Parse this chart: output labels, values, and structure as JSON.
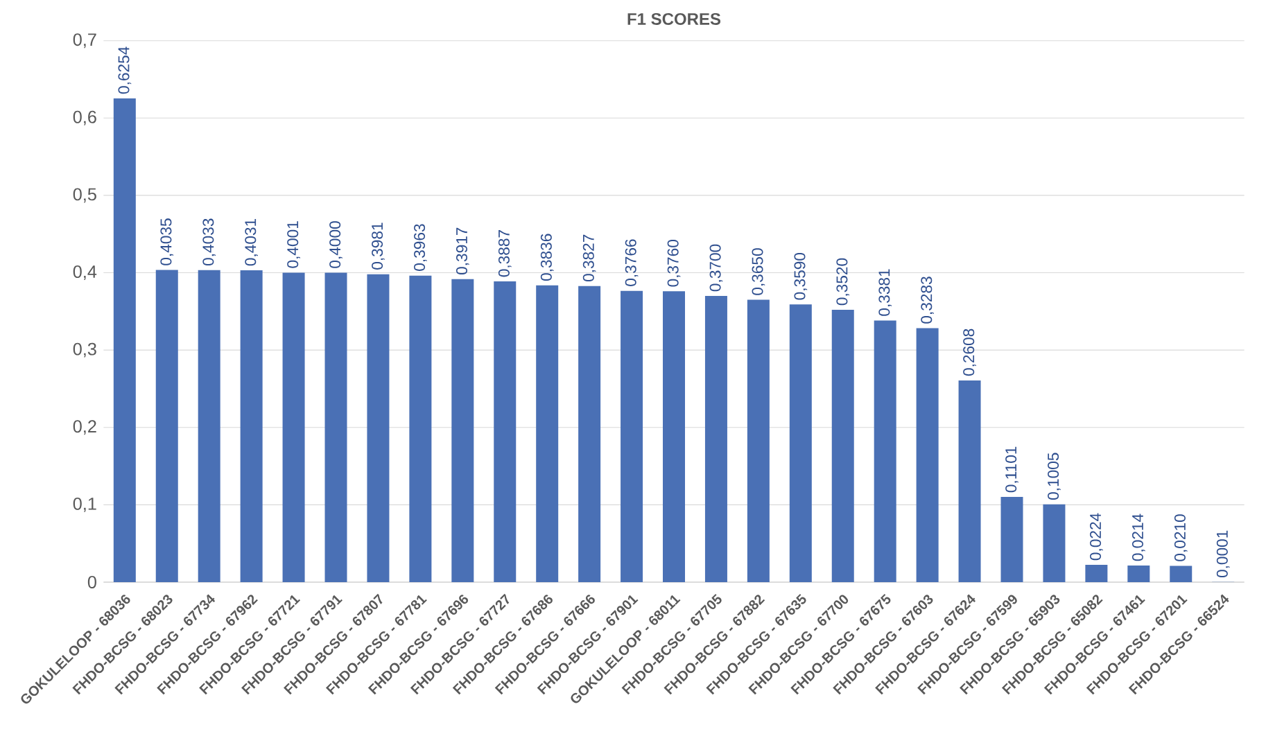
{
  "chart_data": {
    "type": "bar",
    "title": "F1 SCORES",
    "categories": [
      "GOKULELOOP - 68036",
      "FHDO-BCSG - 68023",
      "FHDO-BCSG - 67734",
      "FHDO-BCSG - 67962",
      "FHDO-BCSG - 67721",
      "FHDO-BCSG - 67791",
      "FHDO-BCSG - 67807",
      "FHDO-BCSG - 67781",
      "FHDO-BCSG - 67696",
      "FHDO-BCSG - 67727",
      "FHDO-BCSG - 67686",
      "FHDO-BCSG - 67666",
      "FHDO-BCSG - 67901",
      "GOKULELOOP - 68011",
      "FHDO-BCSG - 67705",
      "FHDO-BCSG - 67882",
      "FHDO-BCSG - 67635",
      "FHDO-BCSG - 67700",
      "FHDO-BCSG - 67675",
      "FHDO-BCSG - 67603",
      "FHDO-BCSG - 67624",
      "FHDO-BCSG - 67599",
      "FHDO-BCSG - 65903",
      "FHDO-BCSG - 65082",
      "FHDO-BCSG - 67461",
      "FHDO-BCSG - 67201",
      "FHDO-BCSG - 66524"
    ],
    "values": [
      0.6254,
      0.4035,
      0.4033,
      0.4031,
      0.4001,
      0.4,
      0.3981,
      0.3963,
      0.3917,
      0.3887,
      0.3836,
      0.3827,
      0.3766,
      0.376,
      0.37,
      0.365,
      0.359,
      0.352,
      0.3381,
      0.3283,
      0.2608,
      0.1101,
      0.1005,
      0.0224,
      0.0214,
      0.021,
      0.0001
    ],
    "value_labels": [
      "0,6254",
      "0,4035",
      "0,4033",
      "0,4031",
      "0,4001",
      "0,4000",
      "0,3981",
      "0,3963",
      "0,3917",
      "0,3887",
      "0,3836",
      "0,3827",
      "0,3766",
      "0,3760",
      "0,3700",
      "0,3650",
      "0,3590",
      "0,3520",
      "0,3381",
      "0,3283",
      "0,2608",
      "0,1101",
      "0,1005",
      "0,0224",
      "0,0214",
      "0,0210",
      "0,0001"
    ],
    "color": "#4a70b5",
    "ylim": [
      0,
      0.7
    ],
    "yticks": [
      0,
      {
        "value": 0.1,
        "label": "0,1"
      },
      {
        "value": 0.2,
        "label": "0,2"
      },
      {
        "value": 0.3,
        "label": "0,3"
      },
      {
        "value": 0.4,
        "label": "0,4"
      },
      {
        "value": 0.5,
        "label": "0,5"
      },
      {
        "value": 0.6,
        "label": "0,6"
      },
      {
        "value": 0.7,
        "label": "0,7"
      }
    ],
    "grid": "y"
  }
}
